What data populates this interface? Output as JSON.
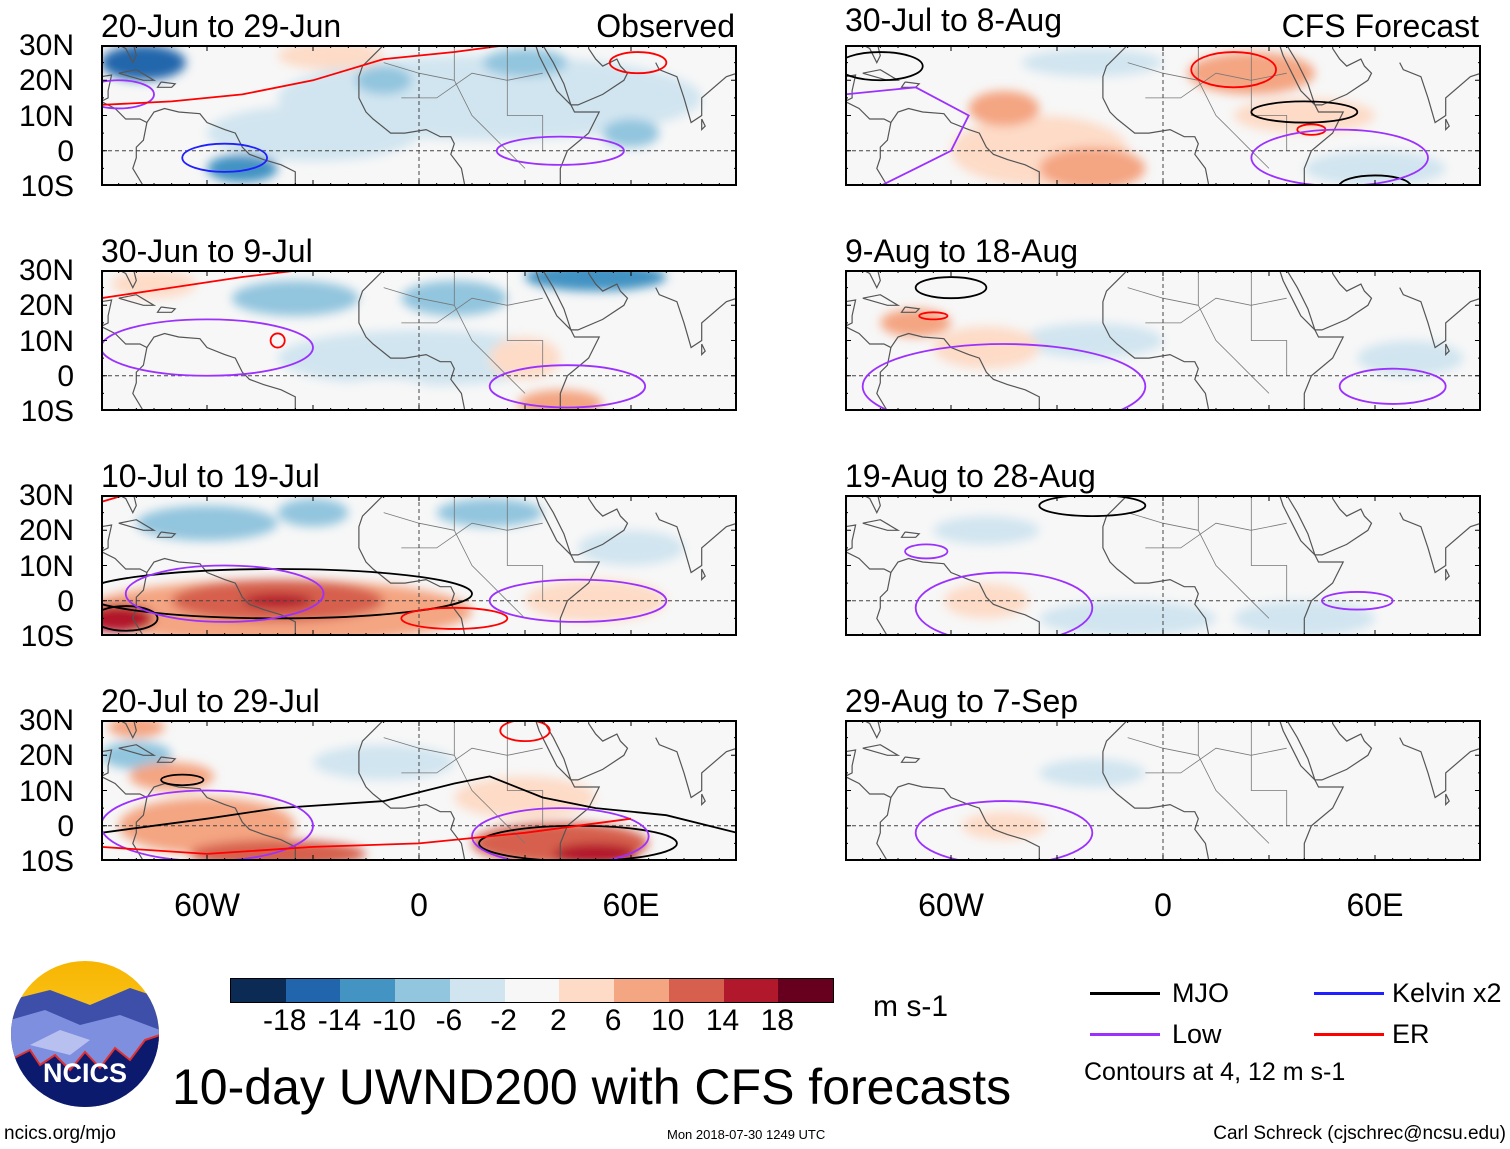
{
  "figure_title": "10-day UWND200 with CFS forecasts",
  "observed_label": "Observed",
  "forecast_label": "CFS Forecast",
  "lat_labels": [
    "30N",
    "20N",
    "10N",
    "0",
    "10S"
  ],
  "lon_labels": [
    "60W",
    "0",
    "60E"
  ],
  "colorbar": {
    "colors": [
      "#0b2b55",
      "#2166ac",
      "#4393c3",
      "#92c5de",
      "#d1e5f0",
      "#f7f7f7",
      "#fddbc7",
      "#f4a582",
      "#d6604d",
      "#b2182b",
      "#67001f"
    ],
    "labels": [
      "-18",
      "-14",
      "-10",
      "-6",
      "-2",
      "2",
      "6",
      "10",
      "14",
      "18"
    ],
    "unit": "m s-1"
  },
  "legend": {
    "items": [
      {
        "label": "MJO",
        "color": "#000000"
      },
      {
        "label": "Kelvin x2",
        "color": "#1f1fff"
      },
      {
        "label": "Low",
        "color": "#9b30ff"
      },
      {
        "label": "ER",
        "color": "#ff0000"
      }
    ],
    "note": "Contours at 4, 12 m s-1"
  },
  "logo_text": "NCICS",
  "footer": {
    "left": "ncics.org/mjo",
    "center": "Mon 2018-07-30 1249 UTC",
    "right": "Carl Schreck (cjschrec@ncsu.edu)"
  },
  "panels": [
    {
      "title": "20-Jun to 29-Jun",
      "column": "observed",
      "shading": [
        [
          20,
          15,
          60,
          12,
          -2
        ],
        [
          -30,
          5,
          30,
          8,
          -2
        ],
        [
          -25,
          27,
          15,
          4,
          6
        ],
        [
          10,
          -5,
          20,
          5,
          2
        ],
        [
          -78,
          25,
          12,
          5,
          -14
        ],
        [
          -50,
          -5,
          10,
          4,
          -10
        ],
        [
          60,
          5,
          8,
          4,
          -6
        ],
        [
          30,
          25,
          12,
          4,
          -6
        ],
        [
          -10,
          20,
          8,
          4,
          -6
        ]
      ],
      "contours": [
        {
          "type": "Kelvin x2",
          "ellipse": [
            -55,
            -2,
            12,
            4
          ]
        },
        {
          "type": "Low",
          "ellipse": [
            -85,
            16,
            10,
            4
          ]
        },
        {
          "type": "Low",
          "ellipse": [
            40,
            0,
            18,
            4
          ]
        },
        {
          "type": "ER",
          "line": [
            [
              -90,
              13
            ],
            [
              -70,
              14
            ],
            [
              -50,
              16
            ],
            [
              -30,
              20
            ],
            [
              -10,
              26
            ],
            [
              10,
              28
            ],
            [
              25,
              30
            ]
          ]
        },
        {
          "type": "ER",
          "ellipse": [
            62,
            25,
            8,
            3
          ]
        }
      ]
    },
    {
      "title": "30-Jun to 9-Jul",
      "column": "observed",
      "shading": [
        [
          -35,
          22,
          18,
          5,
          -6
        ],
        [
          10,
          22,
          15,
          5,
          -6
        ],
        [
          50,
          28,
          20,
          4,
          -10
        ],
        [
          0,
          5,
          40,
          8,
          -2
        ],
        [
          -75,
          26,
          12,
          4,
          6
        ],
        [
          30,
          5,
          10,
          6,
          6
        ],
        [
          40,
          -8,
          12,
          4,
          10
        ],
        [
          -10,
          -5,
          15,
          4,
          2
        ]
      ],
      "contours": [
        {
          "type": "Low",
          "ellipse": [
            -60,
            8,
            30,
            8
          ]
        },
        {
          "type": "Low",
          "ellipse": [
            42,
            -3,
            22,
            6
          ]
        },
        {
          "type": "ER",
          "line": [
            [
              -90,
              22
            ],
            [
              -70,
              25
            ],
            [
              -50,
              28
            ],
            [
              -25,
              31
            ]
          ]
        },
        {
          "type": "ER",
          "ellipse": [
            -40,
            10,
            2,
            2
          ]
        }
      ]
    },
    {
      "title": "10-Jul to 19-Jul",
      "column": "observed",
      "shading": [
        [
          -60,
          22,
          20,
          5,
          -6
        ],
        [
          -30,
          25,
          10,
          4,
          -6
        ],
        [
          20,
          25,
          15,
          4,
          -6
        ],
        [
          60,
          15,
          15,
          5,
          -2
        ],
        [
          50,
          0,
          20,
          6,
          6
        ],
        [
          -40,
          -3,
          55,
          9,
          10
        ],
        [
          -40,
          0,
          30,
          6,
          14
        ],
        [
          -85,
          -5,
          10,
          4,
          18
        ],
        [
          -40,
          0,
          10,
          2,
          18
        ]
      ],
      "contours": [
        {
          "type": "MJO",
          "ellipse": [
            -40,
            2,
            55,
            7
          ]
        },
        {
          "type": "MJO",
          "ellipse": [
            -83,
            -5,
            9,
            3.5
          ]
        },
        {
          "type": "Low",
          "ellipse": [
            -55,
            2,
            28,
            8
          ]
        },
        {
          "type": "Low",
          "ellipse": [
            45,
            0,
            25,
            6
          ]
        },
        {
          "type": "ER",
          "line": [
            [
              -90,
              28
            ],
            [
              -80,
              31
            ]
          ]
        },
        {
          "type": "ER",
          "ellipse": [
            10,
            -5,
            15,
            3
          ]
        }
      ]
    },
    {
      "title": "20-Jul to 29-Jul",
      "column": "observed",
      "shading": [
        [
          -80,
          20,
          10,
          4,
          -6
        ],
        [
          -10,
          18,
          20,
          5,
          -2
        ],
        [
          30,
          8,
          20,
          6,
          6
        ],
        [
          -70,
          14,
          12,
          4,
          10
        ],
        [
          -60,
          0,
          25,
          8,
          10
        ],
        [
          -40,
          -8,
          25,
          4,
          14
        ],
        [
          40,
          -5,
          25,
          6,
          14
        ],
        [
          50,
          -8,
          12,
          3,
          18
        ],
        [
          -80,
          28,
          8,
          3,
          10
        ]
      ],
      "contours": [
        {
          "type": "MJO",
          "ellipse": [
            45,
            -5,
            28,
            5
          ]
        },
        {
          "type": "MJO",
          "line": [
            [
              -90,
              -2
            ],
            [
              -60,
              2
            ],
            [
              -40,
              5
            ],
            [
              -10,
              7
            ],
            [
              10,
              12
            ],
            [
              20,
              14
            ],
            [
              35,
              8
            ],
            [
              50,
              5
            ],
            [
              70,
              3
            ],
            [
              90,
              -2
            ]
          ]
        },
        {
          "type": "MJO",
          "ellipse": [
            -67,
            13,
            6,
            1.5
          ]
        },
        {
          "type": "Low",
          "ellipse": [
            -60,
            0,
            30,
            10
          ]
        },
        {
          "type": "Low",
          "ellipse": [
            40,
            -3,
            25,
            8
          ]
        },
        {
          "type": "ER",
          "ellipse": [
            30,
            27,
            7,
            3
          ]
        },
        {
          "type": "ER",
          "line": [
            [
              -90,
              -6
            ],
            [
              -60,
              -8
            ],
            [
              -30,
              -6
            ],
            [
              0,
              -5
            ],
            [
              30,
              -2
            ],
            [
              60,
              2
            ]
          ]
        }
      ]
    },
    {
      "title": "30-Jul to 8-Aug",
      "column": "forecast",
      "shading": [
        [
          -20,
          25,
          20,
          4,
          -2
        ],
        [
          60,
          -5,
          20,
          5,
          -2
        ],
        [
          70,
          20,
          15,
          6,
          2
        ],
        [
          -35,
          0,
          25,
          10,
          6
        ],
        [
          -20,
          -5,
          15,
          6,
          10
        ],
        [
          25,
          22,
          18,
          6,
          10
        ],
        [
          40,
          10,
          20,
          5,
          6
        ],
        [
          -45,
          12,
          10,
          5,
          10
        ]
      ],
      "contours": [
        {
          "type": "ER",
          "ellipse": [
            20,
            23,
            12,
            5
          ]
        },
        {
          "type": "ER",
          "ellipse": [
            42,
            6,
            4,
            1.5
          ]
        },
        {
          "type": "MJO",
          "ellipse": [
            40,
            11,
            15,
            3
          ]
        },
        {
          "type": "MJO",
          "ellipse": [
            -80,
            24,
            12,
            4
          ]
        },
        {
          "type": "MJO",
          "ellipse": [
            60,
            -10,
            10,
            3
          ]
        },
        {
          "type": "Low",
          "line": [
            [
              -90,
              16
            ],
            [
              -70,
              18
            ],
            [
              -55,
              10
            ],
            [
              -60,
              0
            ],
            [
              -70,
              -5
            ],
            [
              -80,
              -10
            ]
          ]
        },
        {
          "type": "Low",
          "ellipse": [
            50,
            -2,
            25,
            8
          ]
        }
      ]
    },
    {
      "title": "9-Aug to 18-Aug",
      "column": "forecast",
      "shading": [
        [
          -20,
          10,
          20,
          5,
          -2
        ],
        [
          70,
          5,
          15,
          5,
          -2
        ],
        [
          -30,
          25,
          20,
          4,
          2
        ],
        [
          30,
          15,
          30,
          6,
          2
        ],
        [
          -50,
          8,
          15,
          6,
          6
        ],
        [
          -70,
          15,
          10,
          4,
          10
        ]
      ],
      "contours": [
        {
          "type": "MJO",
          "ellipse": [
            -60,
            25,
            10,
            3
          ]
        },
        {
          "type": "ER",
          "ellipse": [
            -65,
            17,
            4,
            1
          ]
        },
        {
          "type": "Low",
          "ellipse": [
            -45,
            -3,
            40,
            12
          ]
        },
        {
          "type": "Low",
          "ellipse": [
            65,
            -3,
            15,
            5
          ]
        }
      ]
    },
    {
      "title": "19-Aug to 28-Aug",
      "column": "forecast",
      "shading": [
        [
          -10,
          -5,
          25,
          5,
          -2
        ],
        [
          40,
          -5,
          20,
          5,
          -2
        ],
        [
          -50,
          20,
          15,
          4,
          -2
        ],
        [
          -70,
          5,
          15,
          6,
          2
        ],
        [
          -10,
          27,
          25,
          3,
          2
        ],
        [
          -50,
          0,
          12,
          5,
          6
        ]
      ],
      "contours": [
        {
          "type": "MJO",
          "ellipse": [
            -20,
            27,
            15,
            3
          ]
        },
        {
          "type": "Low",
          "ellipse": [
            -45,
            -2,
            25,
            10
          ]
        },
        {
          "type": "Low",
          "ellipse": [
            55,
            0,
            10,
            2.5
          ]
        },
        {
          "type": "Low",
          "ellipse": [
            -67,
            14,
            6,
            2
          ]
        }
      ]
    },
    {
      "title": "29-Aug to 7-Sep",
      "column": "forecast",
      "shading": [
        [
          -20,
          15,
          15,
          4,
          -2
        ],
        [
          -50,
          5,
          30,
          8,
          2
        ],
        [
          -10,
          5,
          20,
          5,
          2
        ],
        [
          60,
          -5,
          25,
          5,
          2
        ],
        [
          -45,
          0,
          12,
          4,
          6
        ]
      ],
      "contours": [
        {
          "type": "Low",
          "ellipse": [
            -45,
            -2,
            25,
            9
          ]
        }
      ]
    }
  ]
}
